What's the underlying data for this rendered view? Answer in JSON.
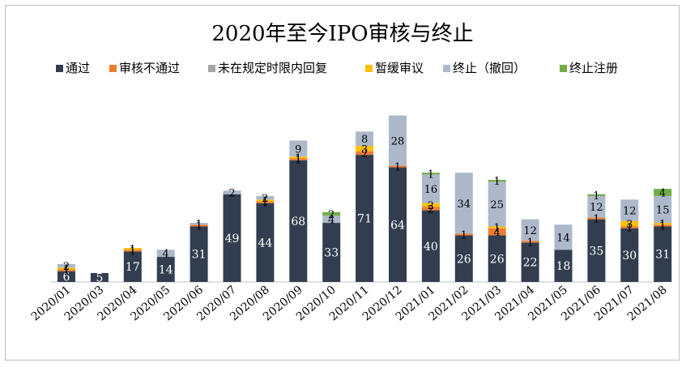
{
  "chart_data": {
    "type": "bar",
    "stacked": true,
    "title": "2020年至今IPO审核与终止",
    "xlabel": "",
    "ylabel": "",
    "ylim": [
      0,
      110
    ],
    "grid": false,
    "legend_position": "top",
    "categories": [
      "2020/01",
      "2020/03",
      "2020/04",
      "2020/05",
      "2020/06",
      "2020/07",
      "2020/08",
      "2020/09",
      "2020/10",
      "2020/11",
      "2020/12",
      "2021/01",
      "2021/02",
      "2021/03",
      "2021/04",
      "2021/05",
      "2021/06",
      "2021/07",
      "2021/08"
    ],
    "series": [
      {
        "name": "通过",
        "color": "#323e4f",
        "label_color": "#ffffff",
        "values": [
          6,
          5,
          17,
          14,
          31,
          49,
          44,
          68,
          33,
          71,
          64,
          40,
          26,
          26,
          22,
          18,
          35,
          30,
          31
        ]
      },
      {
        "name": "审核不通过",
        "color": "#ed7d31",
        "label_color": "#000000",
        "values": [
          1,
          0,
          1,
          0,
          1,
          0,
          1,
          1,
          0,
          2,
          1,
          2,
          1,
          4,
          1,
          0,
          1,
          1,
          1
        ]
      },
      {
        "name": "未在规定时限内回复",
        "color": "#a5a5a5",
        "label_color": "#000000",
        "values": [
          0,
          0,
          0,
          0,
          0,
          0,
          0,
          0,
          0,
          0,
          0,
          0,
          0,
          0,
          0,
          0,
          0,
          0,
          0
        ]
      },
      {
        "name": "暂缓审议",
        "color": "#ffc000",
        "label_color": "#000000",
        "values": [
          1,
          0,
          1,
          0,
          0,
          0,
          1,
          1,
          0,
          3,
          0,
          2,
          0,
          1,
          0,
          0,
          0,
          3,
          1
        ]
      },
      {
        "name": "终止（撤回）",
        "color": "#adb9ca",
        "label_color": "#000000",
        "values": [
          2,
          0,
          0,
          4,
          1,
          2,
          2,
          9,
          4,
          8,
          28,
          16,
          34,
          25,
          12,
          14,
          12,
          12,
          15
        ]
      },
      {
        "name": "终止注册",
        "color": "#70ad47",
        "label_color": "#000000",
        "values": [
          0,
          0,
          0,
          0,
          0,
          0,
          0,
          0,
          2,
          0,
          0,
          1,
          0,
          1,
          0,
          0,
          1,
          0,
          4
        ]
      }
    ]
  }
}
